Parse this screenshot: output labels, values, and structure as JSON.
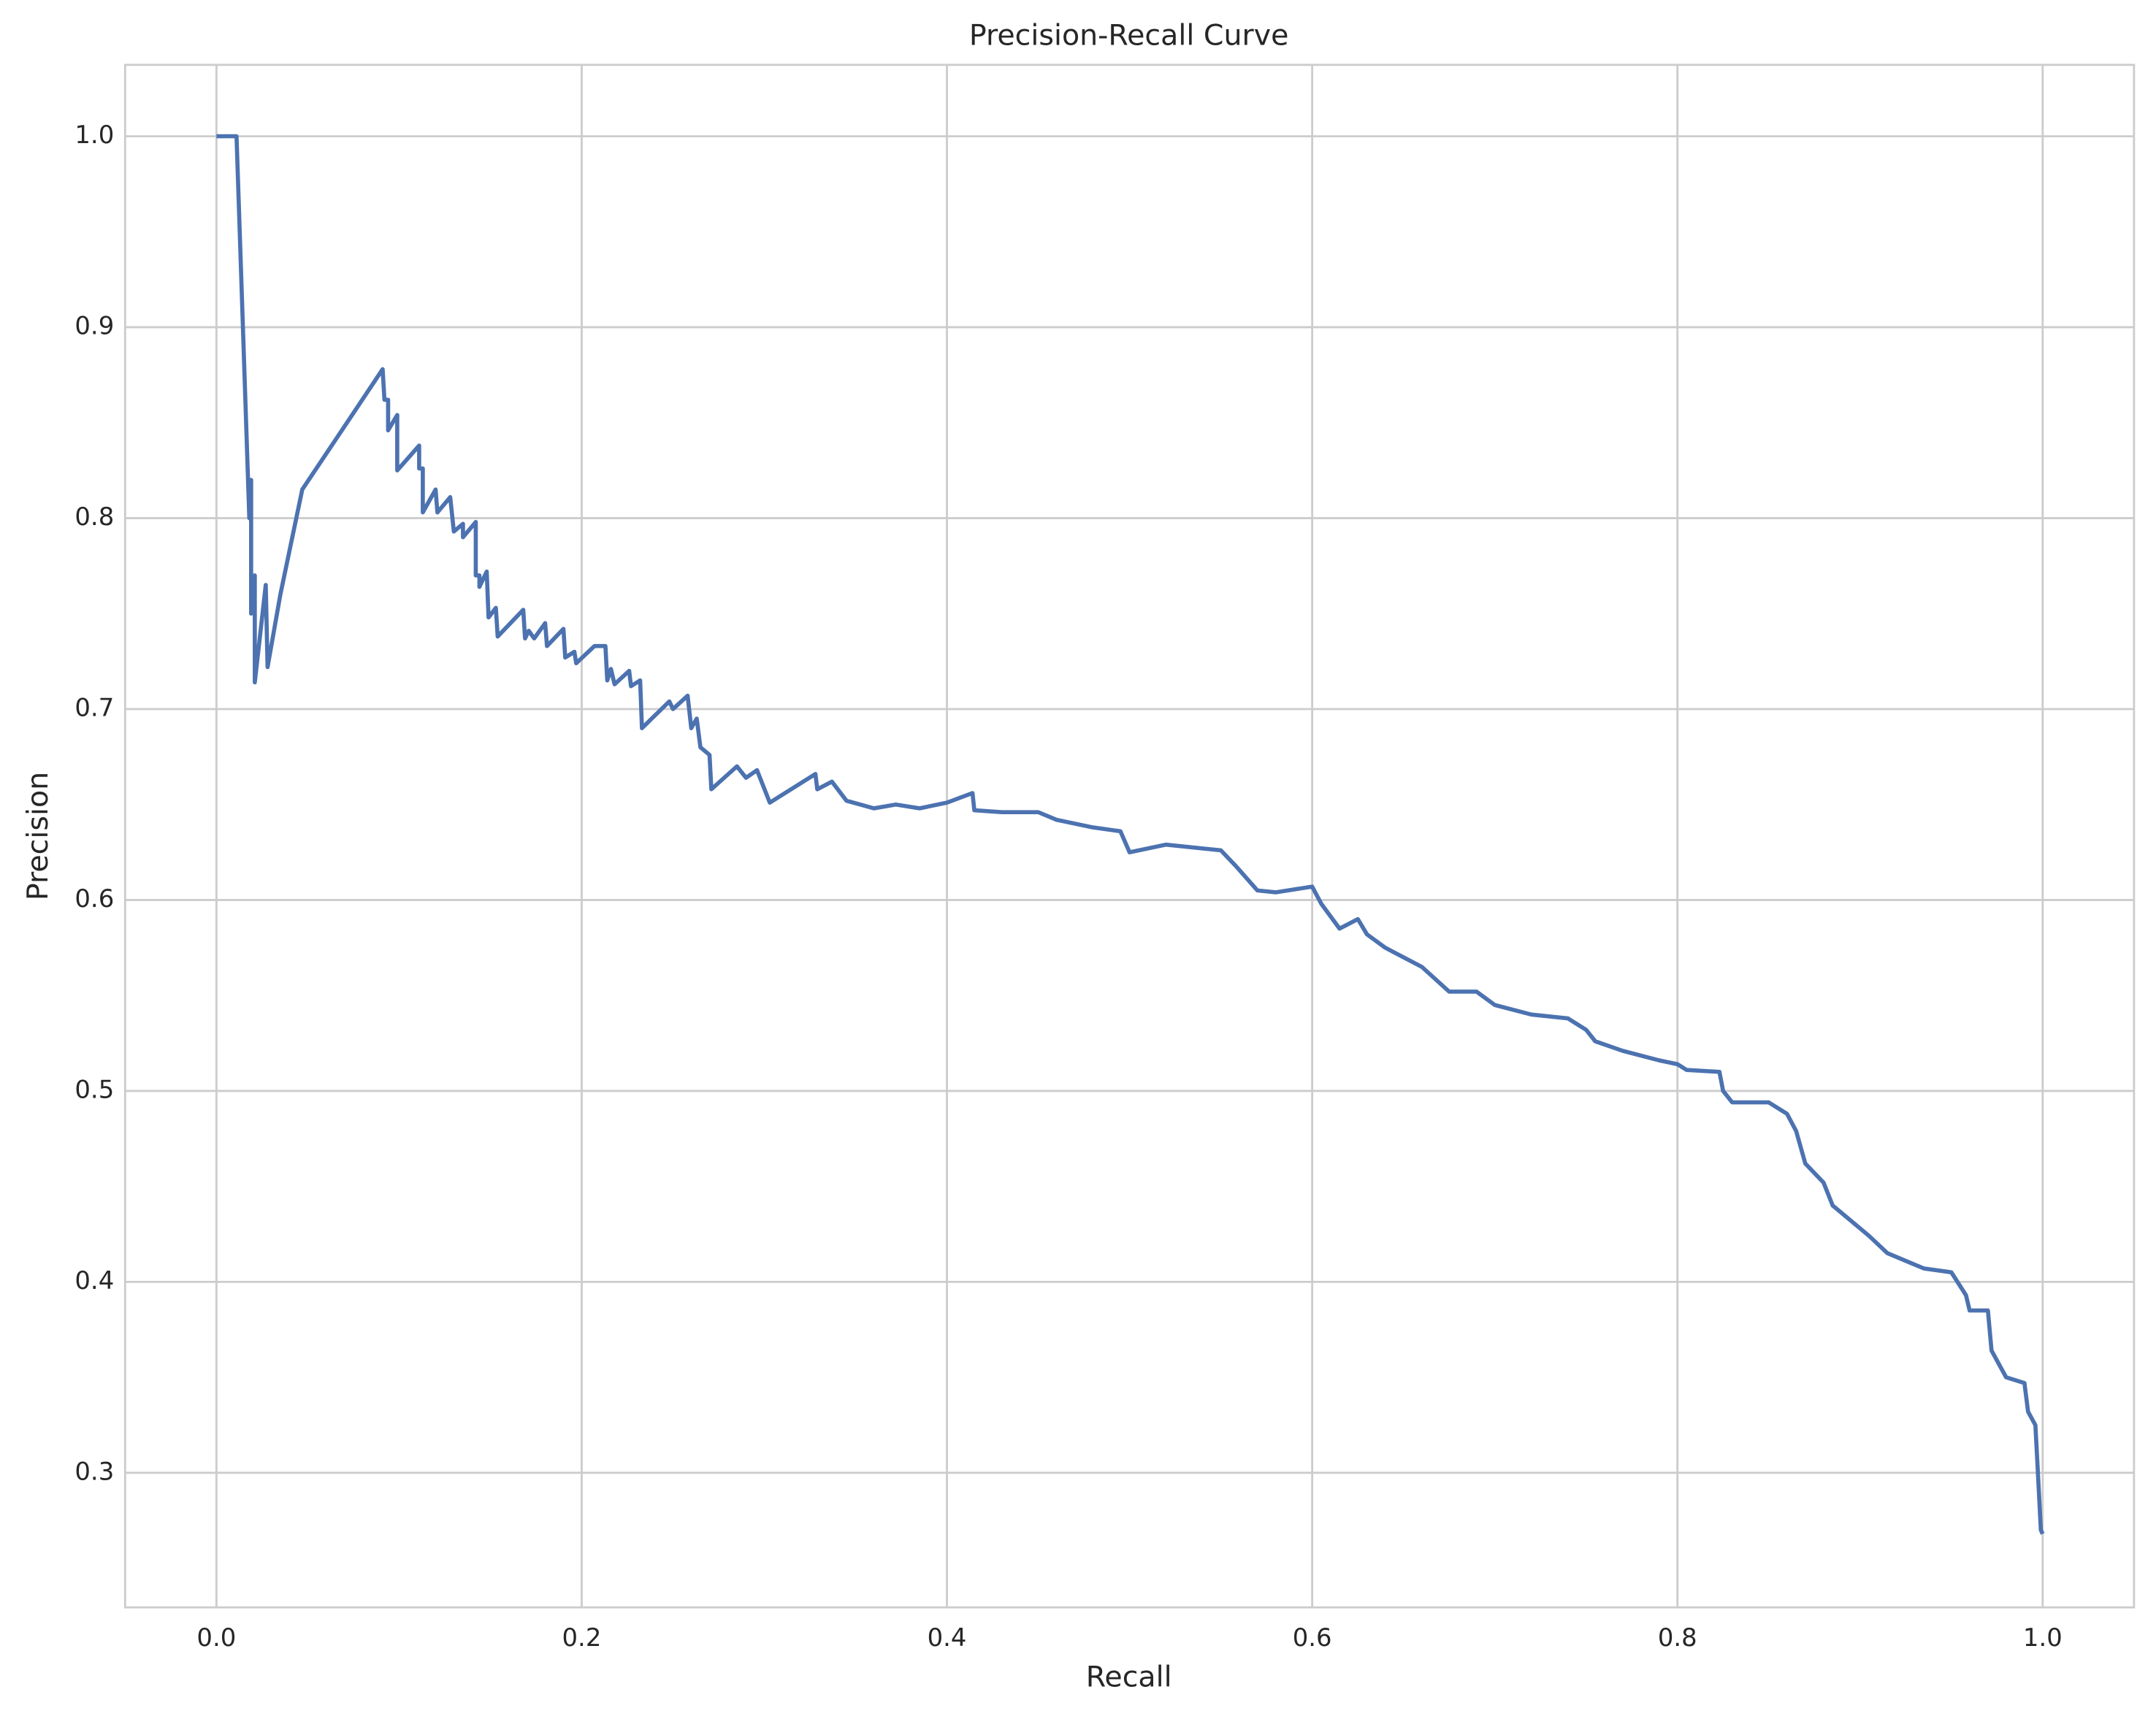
{
  "chart_data": {
    "type": "line",
    "title": "Precision-Recall Curve",
    "x_label": "Recall",
    "y_label": "Precision",
    "xlim": [
      -0.05,
      1.05
    ],
    "ylim": [
      0.2295,
      1.0374
    ],
    "xticks": [
      {
        "value": 0,
        "label": "0.0"
      },
      0.2,
      0.4,
      0.6,
      0.8,
      {
        "value": 1,
        "label": "1.0"
      }
    ],
    "yticks": [
      0.3,
      0.4,
      0.5,
      0.6,
      0.7,
      0.8,
      0.9,
      {
        "value": 1,
        "label": "1.0"
      }
    ],
    "grid": true,
    "x": [
      0,
      0.011,
      0.018,
      0.019,
      0.019,
      0.021,
      0.021,
      0.027,
      0.028,
      0.035,
      0.047,
      0.075,
      0.091,
      0.092,
      0.094,
      0.094,
      0.099,
      0.099,
      0.111,
      0.111,
      0.113,
      0.113,
      0.12,
      0.121,
      0.128,
      0.13,
      0.135,
      0.135,
      0.142,
      0.142,
      0.144,
      0.144,
      0.148,
      0.149,
      0.153,
      0.154,
      0.168,
      0.169,
      0.171,
      0.174,
      0.18,
      0.181,
      0.19,
      0.191,
      0.196,
      0.197,
      0.207,
      0.213,
      0.214,
      0.216,
      0.218,
      0.226,
      0.227,
      0.232,
      0.233,
      0.248,
      0.25,
      0.258,
      0.26,
      0.263,
      0.265,
      0.27,
      0.271,
      0.285,
      0.29,
      0.296,
      0.303,
      0.328,
      0.329,
      0.337,
      0.345,
      0.36,
      0.372,
      0.385,
      0.4,
      0.414,
      0.415,
      0.43,
      0.45,
      0.46,
      0.48,
      0.495,
      0.5,
      0.52,
      0.55,
      0.558,
      0.57,
      0.58,
      0.6,
      0.605,
      0.615,
      0.625,
      0.63,
      0.64,
      0.66,
      0.675,
      0.69,
      0.7,
      0.72,
      0.74,
      0.75,
      0.755,
      0.77,
      0.79,
      0.8,
      0.805,
      0.823,
      0.825,
      0.83,
      0.85,
      0.86,
      0.865,
      0.87,
      0.88,
      0.885,
      0.895,
      0.905,
      0.915,
      0.925,
      0.935,
      0.95,
      0.958,
      0.96,
      0.97,
      0.972,
      0.98,
      0.99,
      0.992,
      0.996,
      0.997,
      0.999,
      1.0
    ],
    "series": [
      {
        "name": "Precision",
        "color": "#4c72b0",
        "values": [
          1.0,
          1.0,
          0.8,
          0.82,
          0.75,
          0.77,
          0.714,
          0.765,
          0.722,
          0.76,
          0.815,
          0.855,
          0.878,
          0.862,
          0.862,
          0.846,
          0.854,
          0.825,
          0.838,
          0.826,
          0.826,
          0.803,
          0.815,
          0.803,
          0.811,
          0.793,
          0.797,
          0.79,
          0.798,
          0.77,
          0.77,
          0.764,
          0.772,
          0.748,
          0.753,
          0.738,
          0.752,
          0.737,
          0.741,
          0.737,
          0.745,
          0.733,
          0.742,
          0.727,
          0.73,
          0.724,
          0.733,
          0.733,
          0.715,
          0.721,
          0.713,
          0.72,
          0.712,
          0.715,
          0.69,
          0.704,
          0.7,
          0.707,
          0.69,
          0.695,
          0.68,
          0.676,
          0.658,
          0.67,
          0.664,
          0.668,
          0.651,
          0.666,
          0.658,
          0.662,
          0.652,
          0.648,
          0.65,
          0.648,
          0.651,
          0.656,
          0.647,
          0.646,
          0.646,
          0.642,
          0.638,
          0.636,
          0.625,
          0.629,
          0.626,
          0.618,
          0.605,
          0.604,
          0.607,
          0.598,
          0.585,
          0.59,
          0.582,
          0.575,
          0.565,
          0.552,
          0.552,
          0.545,
          0.54,
          0.538,
          0.532,
          0.526,
          0.521,
          0.516,
          0.514,
          0.511,
          0.51,
          0.5,
          0.494,
          0.494,
          0.488,
          0.479,
          0.462,
          0.452,
          0.44,
          0.432,
          0.424,
          0.415,
          0.411,
          0.407,
          0.405,
          0.393,
          0.385,
          0.385,
          0.364,
          0.35,
          0.347,
          0.332,
          0.325,
          0.307,
          0.27,
          0.268
        ]
      }
    ]
  }
}
